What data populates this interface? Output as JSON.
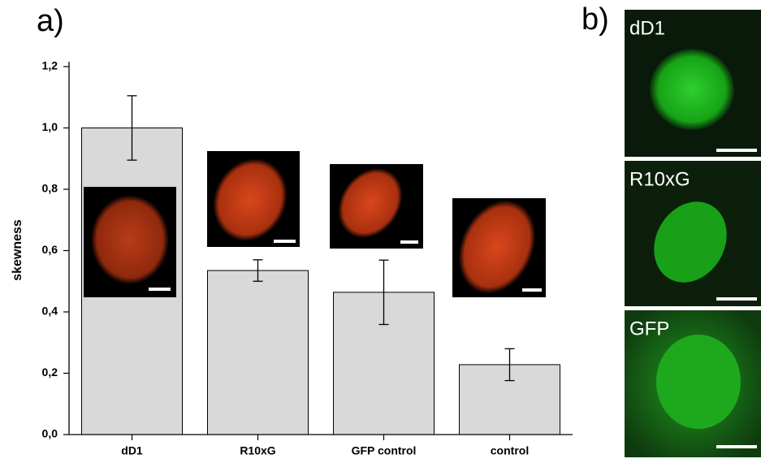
{
  "chart_data": {
    "type": "bar",
    "y_label": "skewness",
    "categories": [
      "dD1",
      "R10xG",
      "GFP control",
      "control"
    ],
    "values": [
      1.0,
      0.535,
      0.464,
      0.228
    ],
    "errors": [
      0.105,
      0.035,
      0.105,
      0.052
    ],
    "color": "#d9d9d9",
    "ylim": [
      0,
      1.2
    ],
    "yticks": [
      {
        "value": 0,
        "label": "0,0"
      },
      {
        "value": 0.2,
        "label": "0,2"
      },
      {
        "value": 0.4,
        "label": "0,4"
      },
      {
        "value": 0.6,
        "label": "0,6"
      },
      {
        "value": 0.8,
        "label": "0,8"
      },
      {
        "value": 1.0,
        "label": "1,0"
      },
      {
        "value": 1.2,
        "label": "1,2"
      }
    ],
    "grid": false
  },
  "panel_labels": [
    "a)",
    "b)"
  ],
  "micrograph_labels": [
    "dD1",
    "R10xG",
    "GFP"
  ]
}
